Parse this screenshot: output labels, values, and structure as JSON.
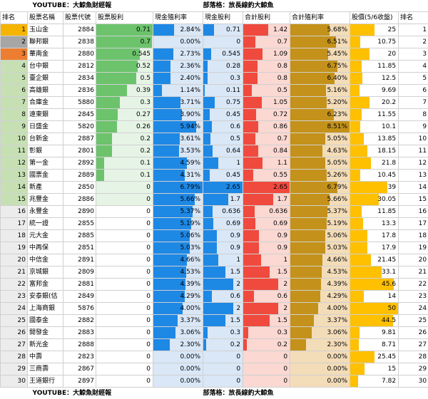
{
  "header_banner": {
    "left": "YOUTUBE：大鯨魚財經報",
    "right": "部落格：放長線釣大鯨魚"
  },
  "footer_banner": {
    "left": "YOUTUBE：大鯨魚財經報",
    "right": "部落格：放長線釣大鯨魚"
  },
  "columns": [
    "排名",
    "股票名稱",
    "股票代號",
    "股票股利",
    "現金殖利率",
    "現金股利",
    "合計股利",
    "合計殖利率",
    "股價(5/6收盤)",
    "排名"
  ],
  "colors": {
    "stock_bar": "#6cc36c",
    "stock_bar_light": "#c9ead0",
    "cash_yield_bar": "#1e88e5",
    "cash_yield_bg": "#d9e7f7",
    "total_bar": "#f04a3e",
    "total_bg": "#fbd8d2",
    "total_yield_bar": "#c4921a",
    "total_yield_bg": "#f3dcb8",
    "price_bar": "#ffc000",
    "rank_gold": "#f5b400",
    "rank_silver": "#a6a6a6",
    "rank_bronze": "#ed7d31",
    "rank_green": "#c6e0b4"
  },
  "rows": [
    {
      "rank": "1",
      "name": "玉山金",
      "code": "2884",
      "stock": "0.71",
      "stock_v": 0.71,
      "cy": "2.84%",
      "cy_v": 2.84,
      "cash": "0.71",
      "cash_v": 0.71,
      "total": "1.42",
      "total_v": 1.42,
      "ty": "5.68%",
      "ty_v": 5.68,
      "price": "25",
      "price_v": 25,
      "rank2": "1"
    },
    {
      "rank": "2",
      "name": "聯邦銀",
      "code": "2838",
      "stock": "0.7",
      "stock_v": 0.7,
      "cy": "0.00%",
      "cy_v": 0,
      "cash": "0",
      "cash_v": 0,
      "total": "0.7",
      "total_v": 0.7,
      "ty": "6.51%",
      "ty_v": 6.51,
      "price": "10.75",
      "price_v": 10.75,
      "rank2": "2"
    },
    {
      "rank": "3",
      "name": "華南金",
      "code": "2880",
      "stock": "0.545",
      "stock_v": 0.545,
      "cy": "2.73%",
      "cy_v": 2.73,
      "cash": "0.545",
      "cash_v": 0.545,
      "total": "1.09",
      "total_v": 1.09,
      "ty": "5.45%",
      "ty_v": 5.45,
      "price": "20",
      "price_v": 20,
      "rank2": "3"
    },
    {
      "rank": "4",
      "name": "台中銀",
      "code": "2812",
      "stock": "0.52",
      "stock_v": 0.52,
      "cy": "2.36%",
      "cy_v": 2.36,
      "cash": "0.28",
      "cash_v": 0.28,
      "total": "0.8",
      "total_v": 0.8,
      "ty": "6.75%",
      "ty_v": 6.75,
      "price": "11.85",
      "price_v": 11.85,
      "rank2": "4"
    },
    {
      "rank": "5",
      "name": "臺企銀",
      "code": "2834",
      "stock": "0.5",
      "stock_v": 0.5,
      "cy": "2.40%",
      "cy_v": 2.4,
      "cash": "0.3",
      "cash_v": 0.3,
      "total": "0.8",
      "total_v": 0.8,
      "ty": "6.40%",
      "ty_v": 6.4,
      "price": "12.5",
      "price_v": 12.5,
      "rank2": "5"
    },
    {
      "rank": "6",
      "name": "高雄銀",
      "code": "2836",
      "stock": "0.39",
      "stock_v": 0.39,
      "cy": "1.14%",
      "cy_v": 1.14,
      "cash": "0.11",
      "cash_v": 0.11,
      "total": "0.5",
      "total_v": 0.5,
      "ty": "5.16%",
      "ty_v": 5.16,
      "price": "9.69",
      "price_v": 9.69,
      "rank2": "6"
    },
    {
      "rank": "7",
      "name": "合庫金",
      "code": "5880",
      "stock": "0.3",
      "stock_v": 0.3,
      "cy": "3.71%",
      "cy_v": 3.71,
      "cash": "0.75",
      "cash_v": 0.75,
      "total": "1.05",
      "total_v": 1.05,
      "ty": "5.20%",
      "ty_v": 5.2,
      "price": "20.2",
      "price_v": 20.2,
      "rank2": "7"
    },
    {
      "rank": "8",
      "name": "遠東銀",
      "code": "2845",
      "stock": "0.27",
      "stock_v": 0.27,
      "cy": "3.90%",
      "cy_v": 3.9,
      "cash": "0.45",
      "cash_v": 0.45,
      "total": "0.72",
      "total_v": 0.72,
      "ty": "6.23%",
      "ty_v": 6.23,
      "price": "11.55",
      "price_v": 11.55,
      "rank2": "8"
    },
    {
      "rank": "9",
      "name": "日盛金",
      "code": "5820",
      "stock": "0.26",
      "stock_v": 0.26,
      "cy": "5.94%",
      "cy_v": 5.94,
      "cash": "0.6",
      "cash_v": 0.6,
      "total": "0.86",
      "total_v": 0.86,
      "ty": "8.51%",
      "ty_v": 8.51,
      "price": "10.1",
      "price_v": 10.1,
      "rank2": "9"
    },
    {
      "rank": "10",
      "name": "台新金",
      "code": "2887",
      "stock": "0.2",
      "stock_v": 0.2,
      "cy": "3.61%",
      "cy_v": 3.61,
      "cash": "0.5",
      "cash_v": 0.5,
      "total": "0.7",
      "total_v": 0.7,
      "ty": "5.05%",
      "ty_v": 5.05,
      "price": "13.85",
      "price_v": 13.85,
      "rank2": "10"
    },
    {
      "rank": "11",
      "name": "彰銀",
      "code": "2801",
      "stock": "0.2",
      "stock_v": 0.2,
      "cy": "3.53%",
      "cy_v": 3.53,
      "cash": "0.64",
      "cash_v": 0.64,
      "total": "0.84",
      "total_v": 0.84,
      "ty": "4.63%",
      "ty_v": 4.63,
      "price": "18.15",
      "price_v": 18.15,
      "rank2": "11"
    },
    {
      "rank": "12",
      "name": "第一金",
      "code": "2892",
      "stock": "0.1",
      "stock_v": 0.1,
      "cy": "4.59%",
      "cy_v": 4.59,
      "cash": "1",
      "cash_v": 1,
      "total": "1.1",
      "total_v": 1.1,
      "ty": "5.05%",
      "ty_v": 5.05,
      "price": "21.8",
      "price_v": 21.8,
      "rank2": "12"
    },
    {
      "rank": "13",
      "name": "國票金",
      "code": "2889",
      "stock": "0.1",
      "stock_v": 0.1,
      "cy": "4.31%",
      "cy_v": 4.31,
      "cash": "0.45",
      "cash_v": 0.45,
      "total": "0.55",
      "total_v": 0.55,
      "ty": "5.26%",
      "ty_v": 5.26,
      "price": "10.45",
      "price_v": 10.45,
      "rank2": "13"
    },
    {
      "rank": "14",
      "name": "新產",
      "code": "2850",
      "stock": "0",
      "stock_v": 0,
      "cy": "6.79%",
      "cy_v": 6.79,
      "cash": "2.65",
      "cash_v": 2.65,
      "total": "2.65",
      "total_v": 2.65,
      "ty": "6.79%",
      "ty_v": 6.79,
      "price": "39",
      "price_v": 39,
      "rank2": "14"
    },
    {
      "rank": "15",
      "name": "兆豐金",
      "code": "2886",
      "stock": "0",
      "stock_v": 0,
      "cy": "5.66%",
      "cy_v": 5.66,
      "cash": "1.7",
      "cash_v": 1.7,
      "total": "1.7",
      "total_v": 1.7,
      "ty": "5.66%",
      "ty_v": 5.66,
      "price": "30.05",
      "price_v": 30.05,
      "rank2": "15"
    },
    {
      "rank": "16",
      "name": "永豐金",
      "code": "2890",
      "stock": "0",
      "stock_v": 0,
      "cy": "5.37%",
      "cy_v": 5.37,
      "cash": "0.636",
      "cash_v": 0.636,
      "total": "0.636",
      "total_v": 0.636,
      "ty": "5.37%",
      "ty_v": 5.37,
      "price": "11.85",
      "price_v": 11.85,
      "rank2": "16"
    },
    {
      "rank": "17",
      "name": "統一證",
      "code": "2855",
      "stock": "0",
      "stock_v": 0,
      "cy": "5.19%",
      "cy_v": 5.19,
      "cash": "0.69",
      "cash_v": 0.69,
      "total": "0.69",
      "total_v": 0.69,
      "ty": "5.19%",
      "ty_v": 5.19,
      "price": "13.3",
      "price_v": 13.3,
      "rank2": "17"
    },
    {
      "rank": "18",
      "name": "元大金",
      "code": "2885",
      "stock": "0",
      "stock_v": 0,
      "cy": "5.06%",
      "cy_v": 5.06,
      "cash": "0.9",
      "cash_v": 0.9,
      "total": "0.9",
      "total_v": 0.9,
      "ty": "5.06%",
      "ty_v": 5.06,
      "price": "17.8",
      "price_v": 17.8,
      "rank2": "18"
    },
    {
      "rank": "19",
      "name": "中再保",
      "code": "2851",
      "stock": "0",
      "stock_v": 0,
      "cy": "5.03%",
      "cy_v": 5.03,
      "cash": "0.9",
      "cash_v": 0.9,
      "total": "0.9",
      "total_v": 0.9,
      "ty": "5.03%",
      "ty_v": 5.03,
      "price": "17.9",
      "price_v": 17.9,
      "rank2": "19"
    },
    {
      "rank": "20",
      "name": "中信金",
      "code": "2891",
      "stock": "0",
      "stock_v": 0,
      "cy": "4.66%",
      "cy_v": 4.66,
      "cash": "1",
      "cash_v": 1,
      "total": "1",
      "total_v": 1,
      "ty": "4.66%",
      "ty_v": 4.66,
      "price": "21.45",
      "price_v": 21.45,
      "rank2": "20"
    },
    {
      "rank": "21",
      "name": "京城銀",
      "code": "2809",
      "stock": "0",
      "stock_v": 0,
      "cy": "4.53%",
      "cy_v": 4.53,
      "cash": "1.5",
      "cash_v": 1.5,
      "total": "1.5",
      "total_v": 1.5,
      "ty": "4.53%",
      "ty_v": 4.53,
      "price": "33.1",
      "price_v": 33.1,
      "rank2": "21"
    },
    {
      "rank": "22",
      "name": "富邦金",
      "code": "2881",
      "stock": "0",
      "stock_v": 0,
      "cy": "4.39%",
      "cy_v": 4.39,
      "cash": "2",
      "cash_v": 2,
      "total": "2",
      "total_v": 2,
      "ty": "4.39%",
      "ty_v": 4.39,
      "price": "45.6",
      "price_v": 45.6,
      "rank2": "22"
    },
    {
      "rank": "23",
      "name": "安泰銀(估",
      "code": "2849",
      "stock": "0",
      "stock_v": 0,
      "cy": "4.29%",
      "cy_v": 4.29,
      "cash": "0.6",
      "cash_v": 0.6,
      "total": "0.6",
      "total_v": 0.6,
      "ty": "4.29%",
      "ty_v": 4.29,
      "price": "14",
      "price_v": 14,
      "rank2": "23"
    },
    {
      "rank": "24",
      "name": "上海商銀",
      "code": "5876",
      "stock": "0",
      "stock_v": 0,
      "cy": "4.00%",
      "cy_v": 4,
      "cash": "2",
      "cash_v": 2,
      "total": "2",
      "total_v": 2,
      "ty": "4.00%",
      "ty_v": 4,
      "price": "50",
      "price_v": 50,
      "rank2": "24"
    },
    {
      "rank": "25",
      "name": "國泰金",
      "code": "2882",
      "stock": "0",
      "stock_v": 0,
      "cy": "3.37%",
      "cy_v": 3.37,
      "cash": "1.5",
      "cash_v": 1.5,
      "total": "1.5",
      "total_v": 1.5,
      "ty": "3.37%",
      "ty_v": 3.37,
      "price": "44.5",
      "price_v": 44.5,
      "rank2": "25"
    },
    {
      "rank": "26",
      "name": "開發金",
      "code": "2883",
      "stock": "0",
      "stock_v": 0,
      "cy": "3.06%",
      "cy_v": 3.06,
      "cash": "0.3",
      "cash_v": 0.3,
      "total": "0.3",
      "total_v": 0.3,
      "ty": "3.06%",
      "ty_v": 3.06,
      "price": "9.81",
      "price_v": 9.81,
      "rank2": "26"
    },
    {
      "rank": "27",
      "name": "新光金",
      "code": "2888",
      "stock": "0",
      "stock_v": 0,
      "cy": "2.30%",
      "cy_v": 2.3,
      "cash": "0.2",
      "cash_v": 0.2,
      "total": "0.2",
      "total_v": 0.2,
      "ty": "2.30%",
      "ty_v": 2.3,
      "price": "8.71",
      "price_v": 8.71,
      "rank2": "27"
    },
    {
      "rank": "28",
      "name": "中壽",
      "code": "2823",
      "stock": "0",
      "stock_v": 0,
      "cy": "0.00%",
      "cy_v": 0,
      "cash": "0",
      "cash_v": 0,
      "total": "0",
      "total_v": 0,
      "ty": "0.00%",
      "ty_v": 0,
      "price": "25.45",
      "price_v": 25.45,
      "rank2": "28"
    },
    {
      "rank": "29",
      "name": "三商壽",
      "code": "2867",
      "stock": "0",
      "stock_v": 0,
      "cy": "0.00%",
      "cy_v": 0,
      "cash": "0",
      "cash_v": 0,
      "total": "0",
      "total_v": 0,
      "ty": "0.00%",
      "ty_v": 0,
      "price": "15",
      "price_v": 15,
      "rank2": "29"
    },
    {
      "rank": "30",
      "name": "王道銀行",
      "code": "2897",
      "stock": "0",
      "stock_v": 0,
      "cy": "0.00%",
      "cy_v": 0,
      "cash": "0",
      "cash_v": 0,
      "total": "0",
      "total_v": 0,
      "ty": "0.00%",
      "ty_v": 0,
      "price": "7.82",
      "price_v": 7.82,
      "rank2": "30"
    }
  ]
}
